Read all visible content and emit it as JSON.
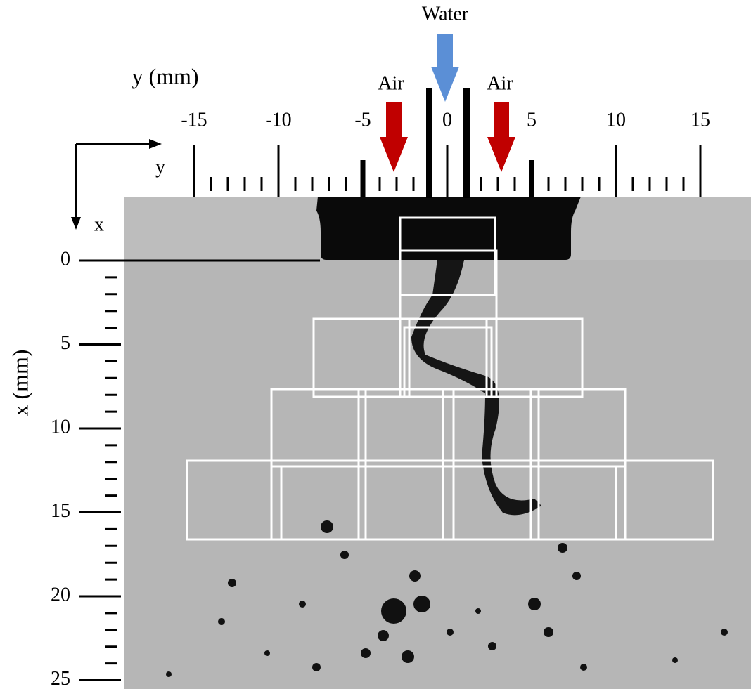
{
  "labels": {
    "water": "Water",
    "air": [
      "Air",
      "Air"
    ],
    "y_axis_title": "y (mm)",
    "x_axis_title": "x (mm)",
    "y_arrow": "y",
    "x_arrow": "x"
  },
  "y_axis": {
    "ticks": [
      -15,
      -10,
      -5,
      0,
      5,
      10,
      15
    ]
  },
  "x_axis": {
    "ticks": [
      0,
      5,
      10,
      15,
      20,
      25
    ]
  }
}
